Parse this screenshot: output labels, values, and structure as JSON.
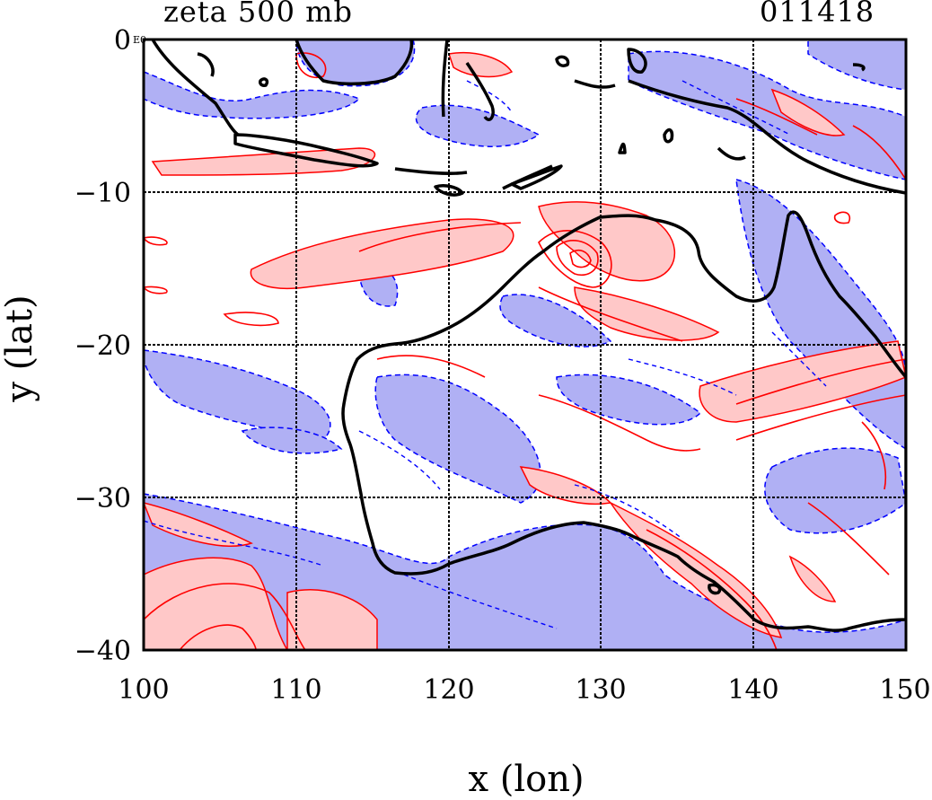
{
  "header": {
    "field_title": "zeta 500 mb",
    "timestamp": "011418"
  },
  "axes": {
    "xlabel": "x (lon)",
    "ylabel": "y (lat)",
    "x_ticks": [
      "100",
      "110",
      "120",
      "130",
      "140",
      "150"
    ],
    "y_ticks": [
      "0",
      "−10",
      "−20",
      "−30",
      "−40"
    ],
    "corner_label": "E0",
    "xlim": [
      100,
      150
    ],
    "ylim": [
      -40,
      0
    ],
    "grid": true
  },
  "colors": {
    "positive_fill": "#ffc8c8",
    "positive_contour": "#ff0000",
    "negative_fill": "#b0b0f4",
    "negative_contour": "#0000ff",
    "coastline": "#000000",
    "gridline": "#000000"
  },
  "map": {
    "region": "Australia / Maritime Continent",
    "field": "relative vorticity (zeta) at 500 mb",
    "contour_style": {
      "positive": "solid red",
      "negative": "dashed blue"
    }
  }
}
